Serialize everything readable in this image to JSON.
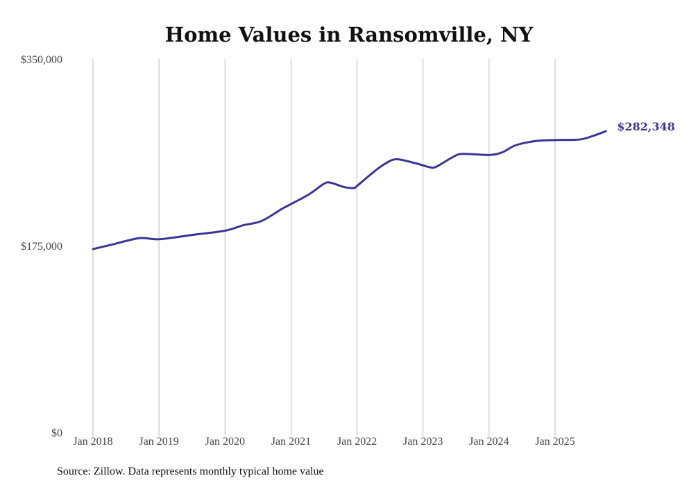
{
  "chart_data": {
    "type": "line",
    "title": "Home Values in Ransomville, NY",
    "xlabel": "",
    "ylabel": "",
    "ylim": [
      0,
      350000
    ],
    "xlim": [
      2018.0,
      2025.77
    ],
    "y_ticks": [
      {
        "value": 0,
        "label": "$0"
      },
      {
        "value": 175000,
        "label": "$175,000"
      },
      {
        "value": 350000,
        "label": "$350,000"
      }
    ],
    "x_ticks": [
      {
        "value": 2018,
        "label": "Jan 2018"
      },
      {
        "value": 2019,
        "label": "Jan 2019"
      },
      {
        "value": 2020,
        "label": "Jan 2020"
      },
      {
        "value": 2021,
        "label": "Jan 2021"
      },
      {
        "value": 2022,
        "label": "Jan 2022"
      },
      {
        "value": 2023,
        "label": "Jan 2023"
      },
      {
        "value": 2024,
        "label": "Jan 2024"
      },
      {
        "value": 2025,
        "label": "Jan 2025"
      }
    ],
    "grid": "vertical",
    "line_color": "#3b3494",
    "series": [
      {
        "name": "Typical home value",
        "x": [
          2018.0,
          2018.27,
          2018.7,
          2019.0,
          2019.5,
          2020.0,
          2020.27,
          2020.55,
          2020.85,
          2021.0,
          2021.27,
          2021.5,
          2021.6,
          2021.8,
          2021.95,
          2022.0,
          2022.27,
          2022.43,
          2022.6,
          2022.9,
          2023.1,
          2023.2,
          2023.45,
          2023.6,
          2024.0,
          2024.2,
          2024.4,
          2024.7,
          2025.0,
          2025.37,
          2025.58,
          2025.77
        ],
        "values": [
          171800,
          175700,
          182000,
          181000,
          185000,
          189000,
          194000,
          198000,
          209000,
          214000,
          223000,
          233000,
          234000,
          230000,
          229000,
          231000,
          245000,
          252000,
          256000,
          252000,
          248500,
          249000,
          258000,
          261000,
          260000,
          262500,
          269000,
          273000,
          274000,
          274500,
          278000,
          282348
        ]
      }
    ],
    "end_label": "$282,348",
    "source": "Source: Zillow. Data represents monthly typical home value"
  }
}
